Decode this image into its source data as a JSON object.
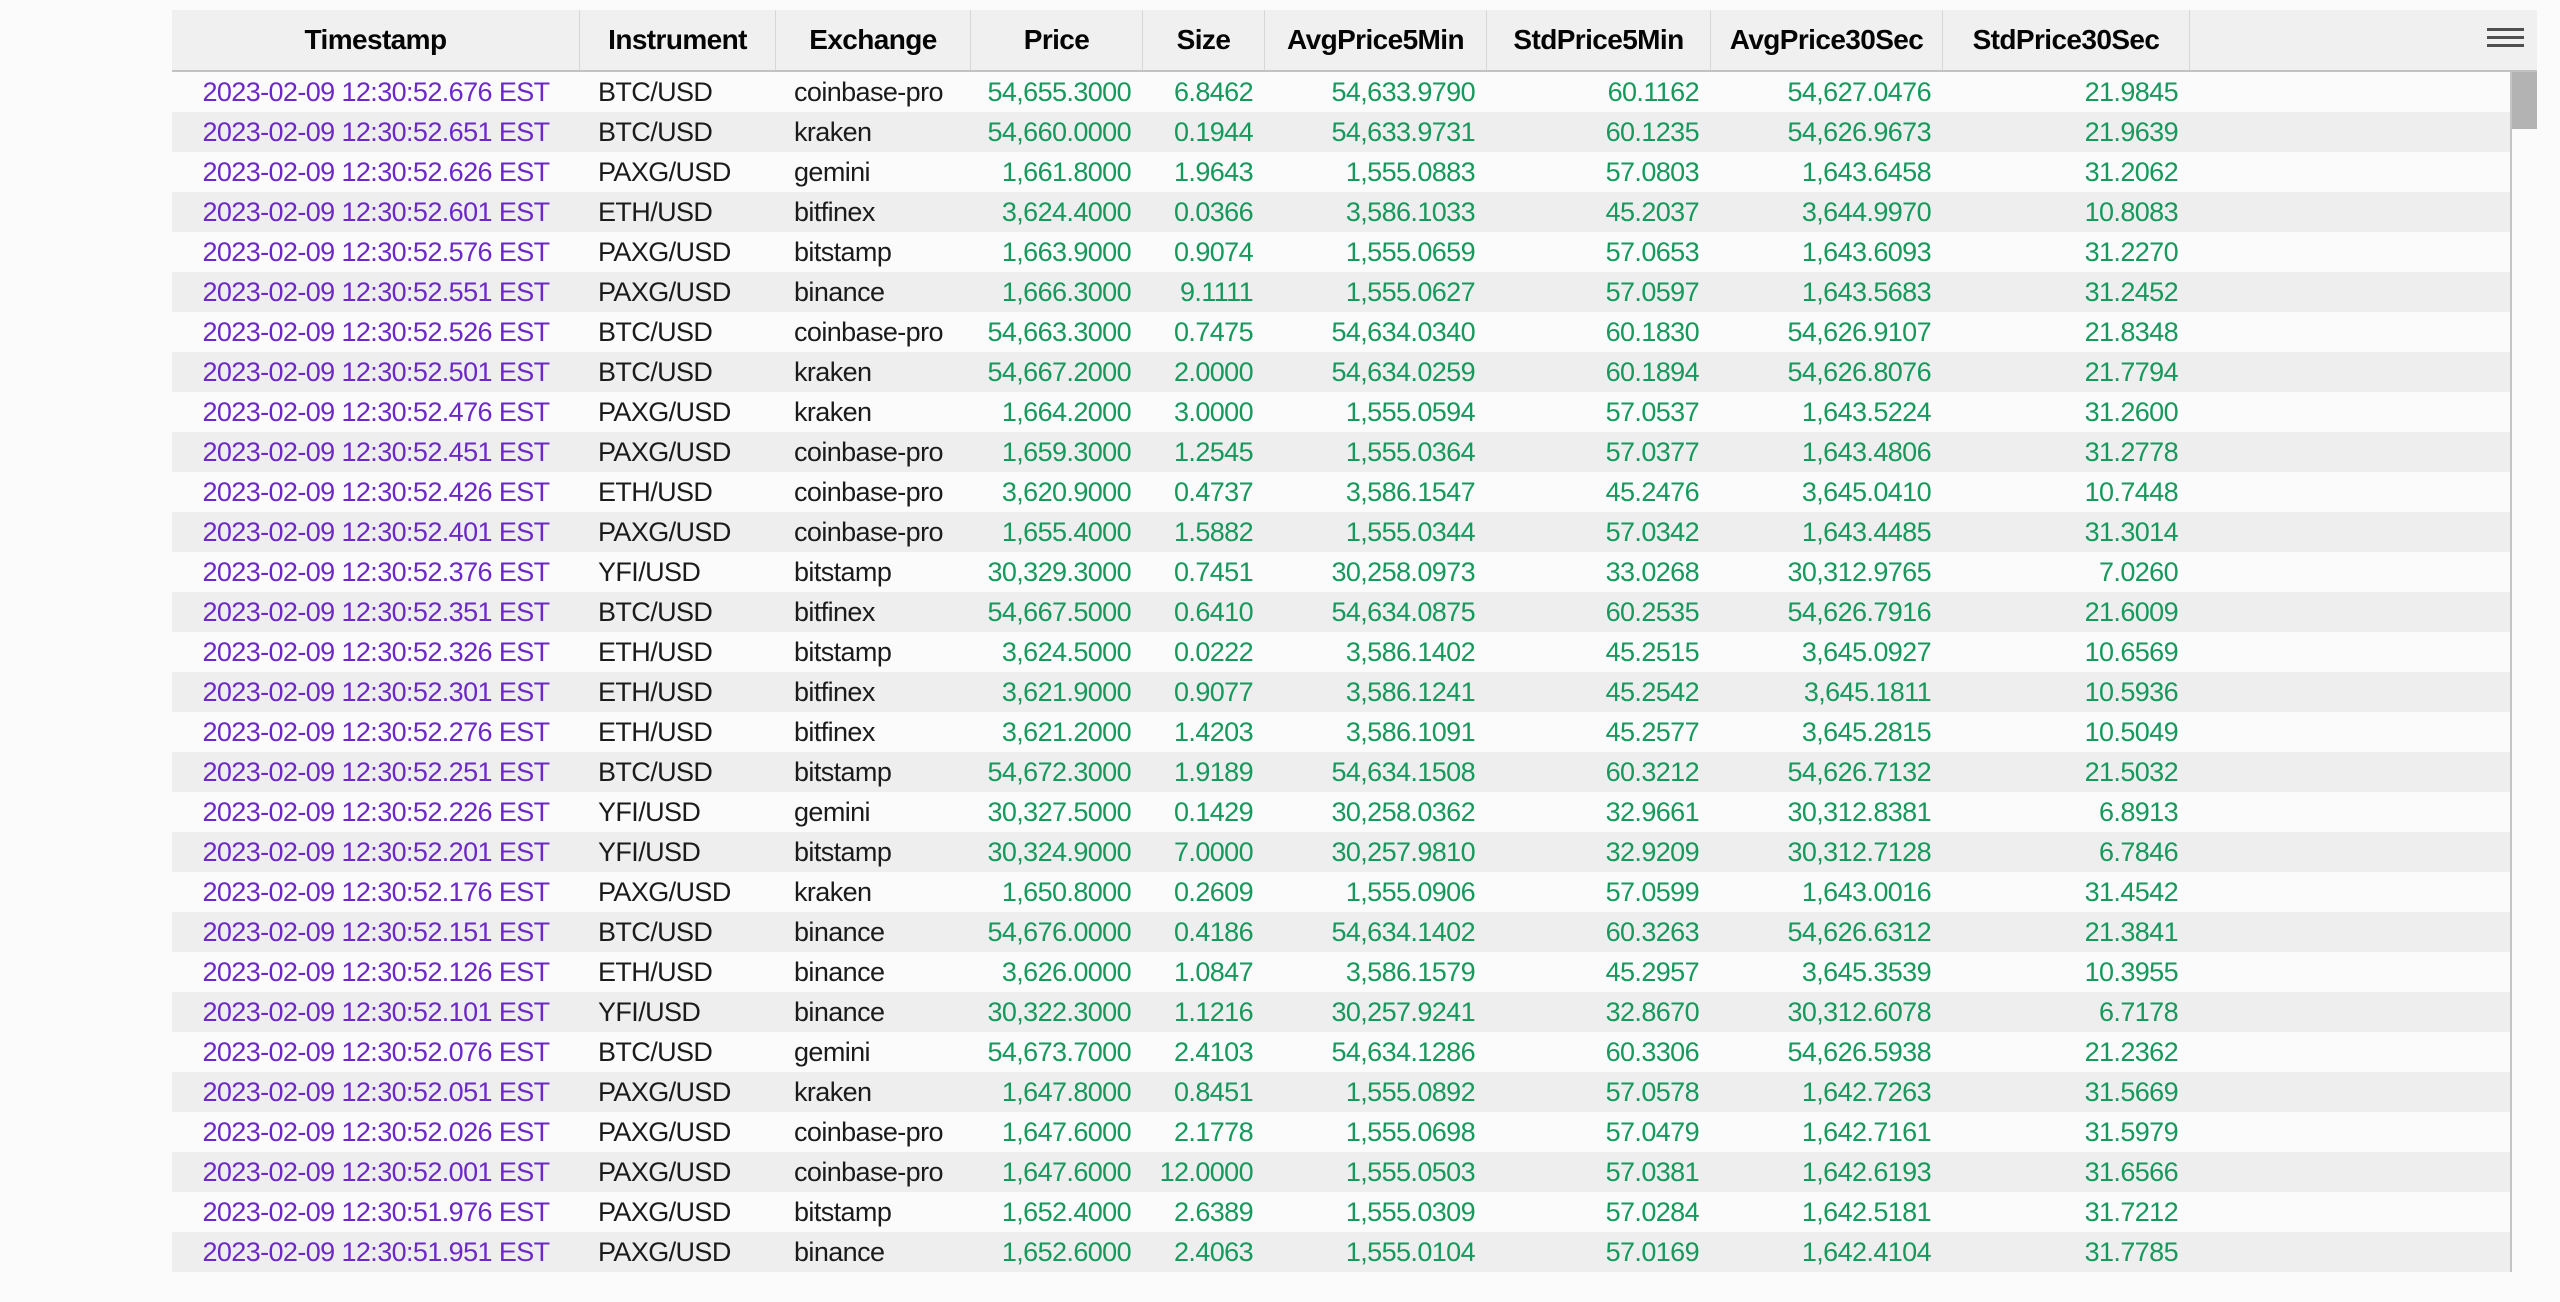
{
  "colors": {
    "page_bg": "#fcfbfb",
    "header_bg": "#f1f0f0",
    "row_even": "#efeeee",
    "row_odd": "#fbfbfb",
    "timestamp": "#6d28c9",
    "number": "#15995c",
    "text_dark": "#1b1b1b",
    "scroll_thumb": "#b4b3b3",
    "hamburger": "#4f4f4f"
  },
  "icons": {
    "menu": "hamburger-menu-icon"
  },
  "table": {
    "columns": [
      {
        "label": "Timestamp"
      },
      {
        "label": "Instrument"
      },
      {
        "label": "Exchange"
      },
      {
        "label": "Price"
      },
      {
        "label": "Size"
      },
      {
        "label": "AvgPrice5Min"
      },
      {
        "label": "StdPrice5Min"
      },
      {
        "label": "AvgPrice30Sec"
      },
      {
        "label": "StdPrice30Sec"
      },
      {
        "label": ""
      }
    ],
    "rows": [
      [
        "2023-02-09 12:30:52.676 EST",
        "BTC/USD",
        "coinbase-pro",
        "54,655.3000",
        "6.8462",
        "54,633.9790",
        "60.1162",
        "54,627.0476",
        "21.9845"
      ],
      [
        "2023-02-09 12:30:52.651 EST",
        "BTC/USD",
        "kraken",
        "54,660.0000",
        "0.1944",
        "54,633.9731",
        "60.1235",
        "54,626.9673",
        "21.9639"
      ],
      [
        "2023-02-09 12:30:52.626 EST",
        "PAXG/USD",
        "gemini",
        "1,661.8000",
        "1.9643",
        "1,555.0883",
        "57.0803",
        "1,643.6458",
        "31.2062"
      ],
      [
        "2023-02-09 12:30:52.601 EST",
        "ETH/USD",
        "bitfinex",
        "3,624.4000",
        "0.0366",
        "3,586.1033",
        "45.2037",
        "3,644.9970",
        "10.8083"
      ],
      [
        "2023-02-09 12:30:52.576 EST",
        "PAXG/USD",
        "bitstamp",
        "1,663.9000",
        "0.9074",
        "1,555.0659",
        "57.0653",
        "1,643.6093",
        "31.2270"
      ],
      [
        "2023-02-09 12:30:52.551 EST",
        "PAXG/USD",
        "binance",
        "1,666.3000",
        "9.1111",
        "1,555.0627",
        "57.0597",
        "1,643.5683",
        "31.2452"
      ],
      [
        "2023-02-09 12:30:52.526 EST",
        "BTC/USD",
        "coinbase-pro",
        "54,663.3000",
        "0.7475",
        "54,634.0340",
        "60.1830",
        "54,626.9107",
        "21.8348"
      ],
      [
        "2023-02-09 12:30:52.501 EST",
        "BTC/USD",
        "kraken",
        "54,667.2000",
        "2.0000",
        "54,634.0259",
        "60.1894",
        "54,626.8076",
        "21.7794"
      ],
      [
        "2023-02-09 12:30:52.476 EST",
        "PAXG/USD",
        "kraken",
        "1,664.2000",
        "3.0000",
        "1,555.0594",
        "57.0537",
        "1,643.5224",
        "31.2600"
      ],
      [
        "2023-02-09 12:30:52.451 EST",
        "PAXG/USD",
        "coinbase-pro",
        "1,659.3000",
        "1.2545",
        "1,555.0364",
        "57.0377",
        "1,643.4806",
        "31.2778"
      ],
      [
        "2023-02-09 12:30:52.426 EST",
        "ETH/USD",
        "coinbase-pro",
        "3,620.9000",
        "0.4737",
        "3,586.1547",
        "45.2476",
        "3,645.0410",
        "10.7448"
      ],
      [
        "2023-02-09 12:30:52.401 EST",
        "PAXG/USD",
        "coinbase-pro",
        "1,655.4000",
        "1.5882",
        "1,555.0344",
        "57.0342",
        "1,643.4485",
        "31.3014"
      ],
      [
        "2023-02-09 12:30:52.376 EST",
        "YFI/USD",
        "bitstamp",
        "30,329.3000",
        "0.7451",
        "30,258.0973",
        "33.0268",
        "30,312.9765",
        "7.0260"
      ],
      [
        "2023-02-09 12:30:52.351 EST",
        "BTC/USD",
        "bitfinex",
        "54,667.5000",
        "0.6410",
        "54,634.0875",
        "60.2535",
        "54,626.7916",
        "21.6009"
      ],
      [
        "2023-02-09 12:30:52.326 EST",
        "ETH/USD",
        "bitstamp",
        "3,624.5000",
        "0.0222",
        "3,586.1402",
        "45.2515",
        "3,645.0927",
        "10.6569"
      ],
      [
        "2023-02-09 12:30:52.301 EST",
        "ETH/USD",
        "bitfinex",
        "3,621.9000",
        "0.9077",
        "3,586.1241",
        "45.2542",
        "3,645.1811",
        "10.5936"
      ],
      [
        "2023-02-09 12:30:52.276 EST",
        "ETH/USD",
        "bitfinex",
        "3,621.2000",
        "1.4203",
        "3,586.1091",
        "45.2577",
        "3,645.2815",
        "10.5049"
      ],
      [
        "2023-02-09 12:30:52.251 EST",
        "BTC/USD",
        "bitstamp",
        "54,672.3000",
        "1.9189",
        "54,634.1508",
        "60.3212",
        "54,626.7132",
        "21.5032"
      ],
      [
        "2023-02-09 12:30:52.226 EST",
        "YFI/USD",
        "gemini",
        "30,327.5000",
        "0.1429",
        "30,258.0362",
        "32.9661",
        "30,312.8381",
        "6.8913"
      ],
      [
        "2023-02-09 12:30:52.201 EST",
        "YFI/USD",
        "bitstamp",
        "30,324.9000",
        "7.0000",
        "30,257.9810",
        "32.9209",
        "30,312.7128",
        "6.7846"
      ],
      [
        "2023-02-09 12:30:52.176 EST",
        "PAXG/USD",
        "kraken",
        "1,650.8000",
        "0.2609",
        "1,555.0906",
        "57.0599",
        "1,643.0016",
        "31.4542"
      ],
      [
        "2023-02-09 12:30:52.151 EST",
        "BTC/USD",
        "binance",
        "54,676.0000",
        "0.4186",
        "54,634.1402",
        "60.3263",
        "54,626.6312",
        "21.3841"
      ],
      [
        "2023-02-09 12:30:52.126 EST",
        "ETH/USD",
        "binance",
        "3,626.0000",
        "1.0847",
        "3,586.1579",
        "45.2957",
        "3,645.3539",
        "10.3955"
      ],
      [
        "2023-02-09 12:30:52.101 EST",
        "YFI/USD",
        "binance",
        "30,322.3000",
        "1.1216",
        "30,257.9241",
        "32.8670",
        "30,312.6078",
        "6.7178"
      ],
      [
        "2023-02-09 12:30:52.076 EST",
        "BTC/USD",
        "gemini",
        "54,673.7000",
        "2.4103",
        "54,634.1286",
        "60.3306",
        "54,626.5938",
        "21.2362"
      ],
      [
        "2023-02-09 12:30:52.051 EST",
        "PAXG/USD",
        "kraken",
        "1,647.8000",
        "0.8451",
        "1,555.0892",
        "57.0578",
        "1,642.7263",
        "31.5669"
      ],
      [
        "2023-02-09 12:30:52.026 EST",
        "PAXG/USD",
        "coinbase-pro",
        "1,647.6000",
        "2.1778",
        "1,555.0698",
        "57.0479",
        "1,642.7161",
        "31.5979"
      ],
      [
        "2023-02-09 12:30:52.001 EST",
        "PAXG/USD",
        "coinbase-pro",
        "1,647.6000",
        "12.0000",
        "1,555.0503",
        "57.0381",
        "1,642.6193",
        "31.6566"
      ],
      [
        "2023-02-09 12:30:51.976 EST",
        "PAXG/USD",
        "bitstamp",
        "1,652.4000",
        "2.6389",
        "1,555.0309",
        "57.0284",
        "1,642.5181",
        "31.7212"
      ],
      [
        "2023-02-09 12:30:51.951 EST",
        "PAXG/USD",
        "binance",
        "1,652.6000",
        "2.4063",
        "1,555.0104",
        "57.0169",
        "1,642.4104",
        "31.7785"
      ]
    ]
  }
}
